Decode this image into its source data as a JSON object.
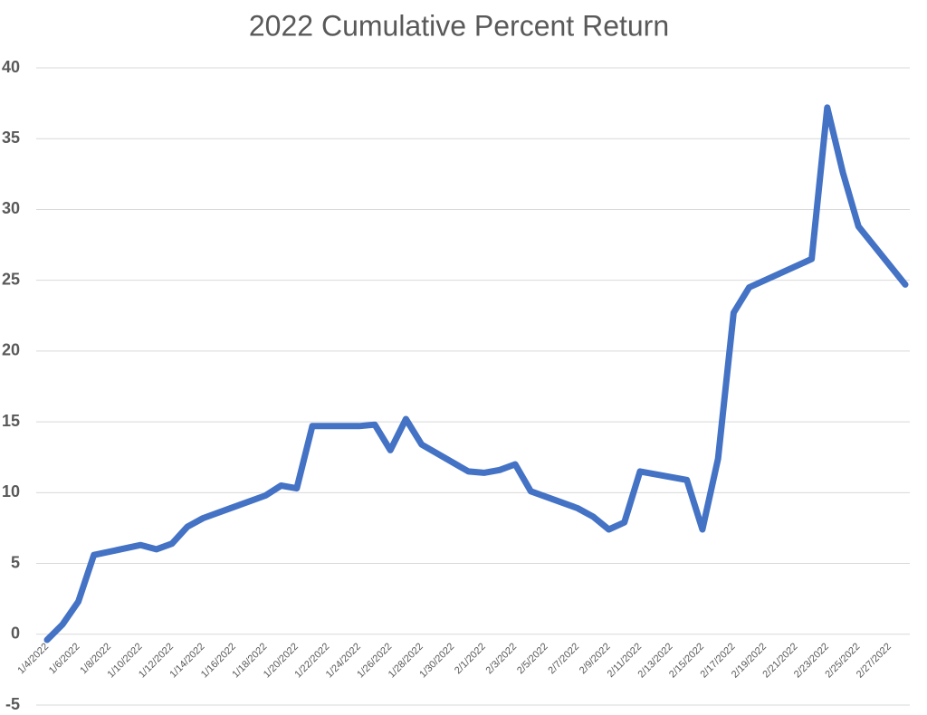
{
  "chart_data": {
    "type": "line",
    "title": "2022 Cumulative Percent Return",
    "x": [
      "1/4/2022",
      "1/5/2022",
      "1/6/2022",
      "1/7/2022",
      "1/10/2022",
      "1/11/2022",
      "1/12/2022",
      "1/13/2022",
      "1/14/2022",
      "1/18/2022",
      "1/19/2022",
      "1/20/2022",
      "1/21/2022",
      "1/24/2022",
      "1/25/2022",
      "1/26/2022",
      "1/27/2022",
      "1/28/2022",
      "1/31/2022",
      "2/1/2022",
      "2/2/2022",
      "2/3/2022",
      "2/4/2022",
      "2/7/2022",
      "2/8/2022",
      "2/9/2022",
      "2/10/2022",
      "2/11/2022",
      "2/14/2022",
      "2/15/2022",
      "2/16/2022",
      "2/17/2022",
      "2/18/2022",
      "2/22/2022",
      "2/23/2022",
      "2/24/2022",
      "2/25/2022",
      "2/28/2022"
    ],
    "series": [
      {
        "color": "#4472c4",
        "values": [
          -0.4,
          0.7,
          2.3,
          5.6,
          6.3,
          6.0,
          6.4,
          7.6,
          8.2,
          9.8,
          10.5,
          10.3,
          14.7,
          14.7,
          14.8,
          13.0,
          15.2,
          13.4,
          11.5,
          11.4,
          11.6,
          12.0,
          10.1,
          8.9,
          8.3,
          7.4,
          7.9,
          11.5,
          10.9,
          7.4,
          12.4,
          22.7,
          24.5,
          26.5,
          37.2,
          32.6,
          28.8,
          24.7
        ]
      }
    ],
    "xlim": [
      "1/4/2022",
      "2/28/2022"
    ],
    "xticks": [
      "1/4/2022",
      "1/6/2022",
      "1/8/2022",
      "1/10/2022",
      "1/12/2022",
      "1/14/2022",
      "1/16/2022",
      "1/18/2022",
      "1/20/2022",
      "1/22/2022",
      "1/24/2022",
      "1/26/2022",
      "1/28/2022",
      "1/30/2022",
      "2/1/2022",
      "2/3/2022",
      "2/5/2022",
      "2/7/2022",
      "2/9/2022",
      "2/11/2022",
      "2/13/2022",
      "2/15/2022",
      "2/17/2022",
      "2/19/2022",
      "2/21/2022",
      "2/23/2022",
      "2/25/2022",
      "2/27/2022"
    ],
    "ylim": [
      -5,
      40
    ],
    "yticks": [
      -5,
      0,
      5,
      10,
      15,
      20,
      25,
      30,
      35,
      40
    ],
    "grid": true
  }
}
